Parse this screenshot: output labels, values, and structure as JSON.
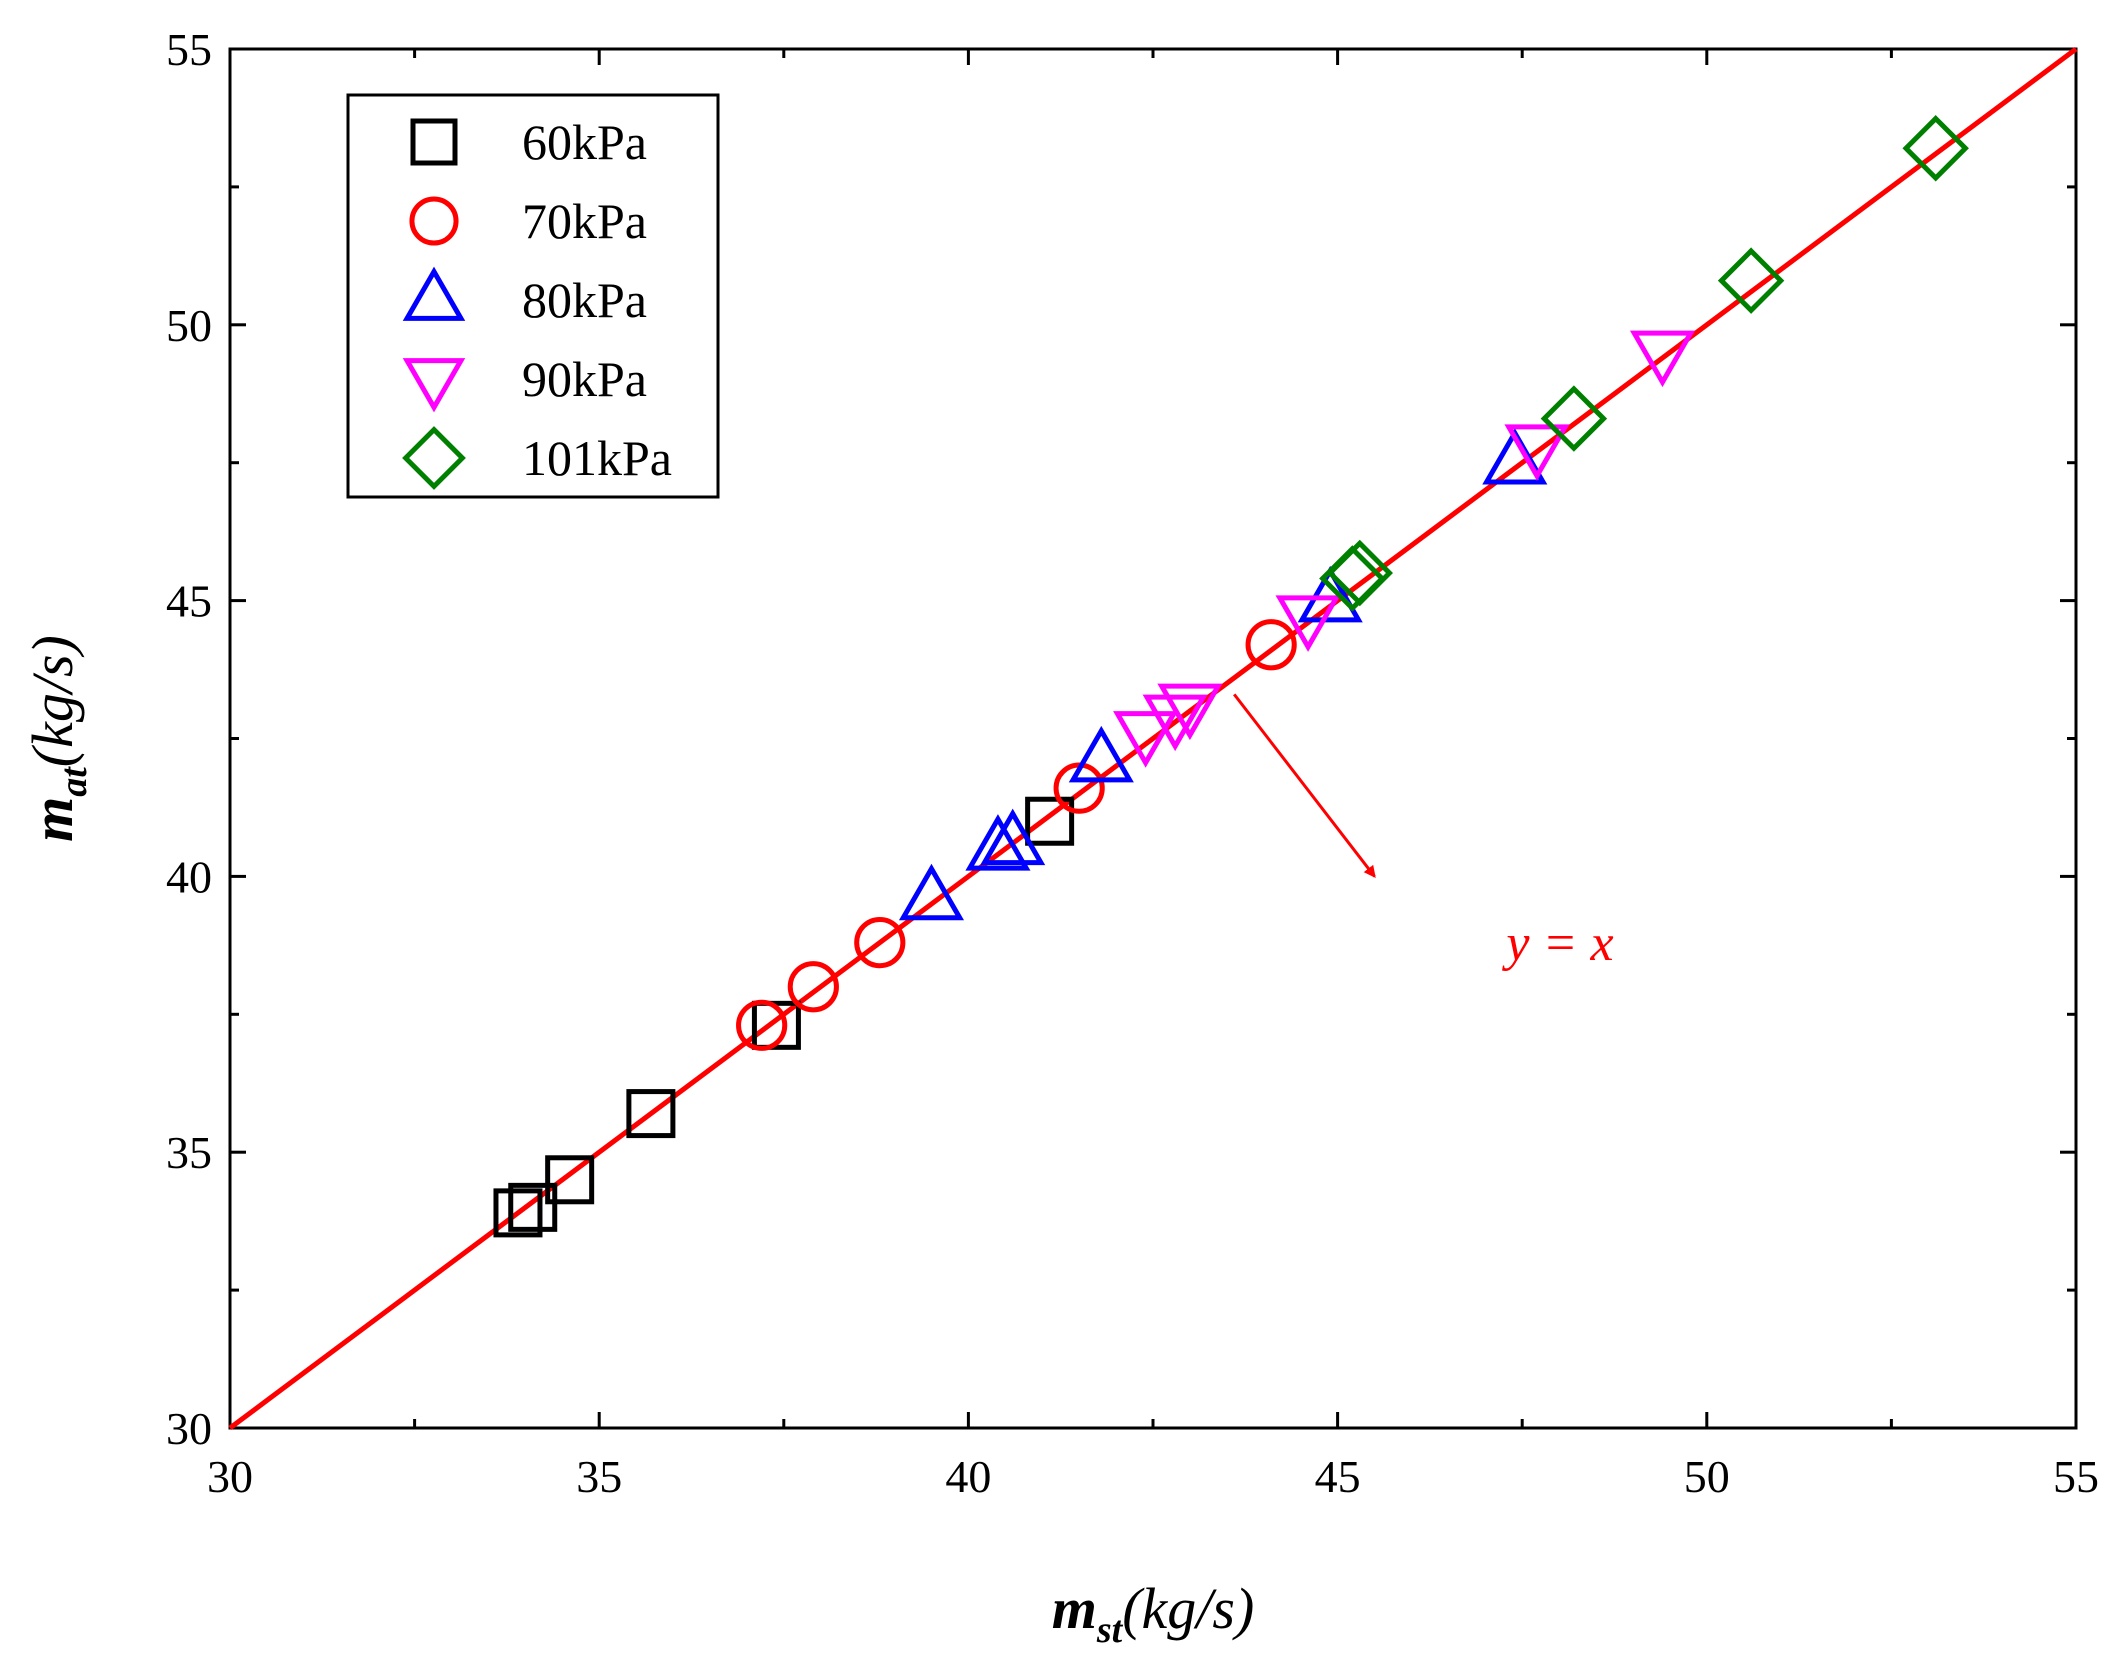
{
  "chart_data": {
    "type": "scatter",
    "xlim": [
      30,
      55
    ],
    "ylim": [
      30,
      55
    ],
    "xticks": [
      "30",
      "35",
      "40",
      "45",
      "50",
      "55"
    ],
    "yticks": [
      "30",
      "35",
      "40",
      "45",
      "50",
      "55"
    ],
    "xlabel": {
      "main": "m",
      "sub": "st",
      "unit": "(kg/s)"
    },
    "ylabel": {
      "main": "m",
      "sub": "at",
      "unit": "(kg/s)"
    },
    "legend_position": "top-left",
    "series": [
      {
        "name": "60kPa",
        "marker": "square",
        "color": "#000000",
        "x": [
          33.9,
          34.1,
          34.6,
          35.7,
          37.4,
          41.1
        ],
        "y": [
          33.9,
          34.0,
          34.5,
          35.7,
          37.3,
          41.0
        ]
      },
      {
        "name": "70kPa",
        "marker": "circle",
        "color": "#ff0000",
        "x": [
          37.2,
          37.9,
          38.8,
          41.5,
          44.1
        ],
        "y": [
          37.3,
          38.0,
          38.8,
          41.6,
          44.2
        ]
      },
      {
        "name": "80kPa",
        "marker": "triangle-up",
        "color": "#0000ff",
        "x": [
          39.5,
          40.4,
          40.6,
          41.8,
          44.9,
          47.4
        ],
        "y": [
          39.6,
          40.5,
          40.6,
          42.1,
          45.0,
          47.5
        ]
      },
      {
        "name": "90kPa",
        "marker": "triangle-down",
        "color": "#ff00ff",
        "x": [
          42.4,
          42.8,
          43.0,
          44.6,
          47.7,
          49.4
        ],
        "y": [
          42.6,
          42.9,
          43.1,
          44.7,
          47.8,
          49.5
        ]
      },
      {
        "name": "101kPa",
        "marker": "diamond",
        "color": "#008000",
        "x": [
          45.2,
          45.3,
          48.2,
          50.6,
          53.1
        ],
        "y": [
          45.4,
          45.5,
          48.3,
          50.8,
          53.2
        ]
      }
    ],
    "reference_line": {
      "label": "y = x",
      "color": "#ff0000",
      "from": [
        30,
        30
      ],
      "to": [
        55,
        55
      ]
    },
    "annotation": {
      "text": "y = x",
      "color": "#ff0000",
      "arrow_from": [
        43.6,
        43.3
      ],
      "arrow_to": [
        45.5,
        40.0
      ]
    }
  }
}
